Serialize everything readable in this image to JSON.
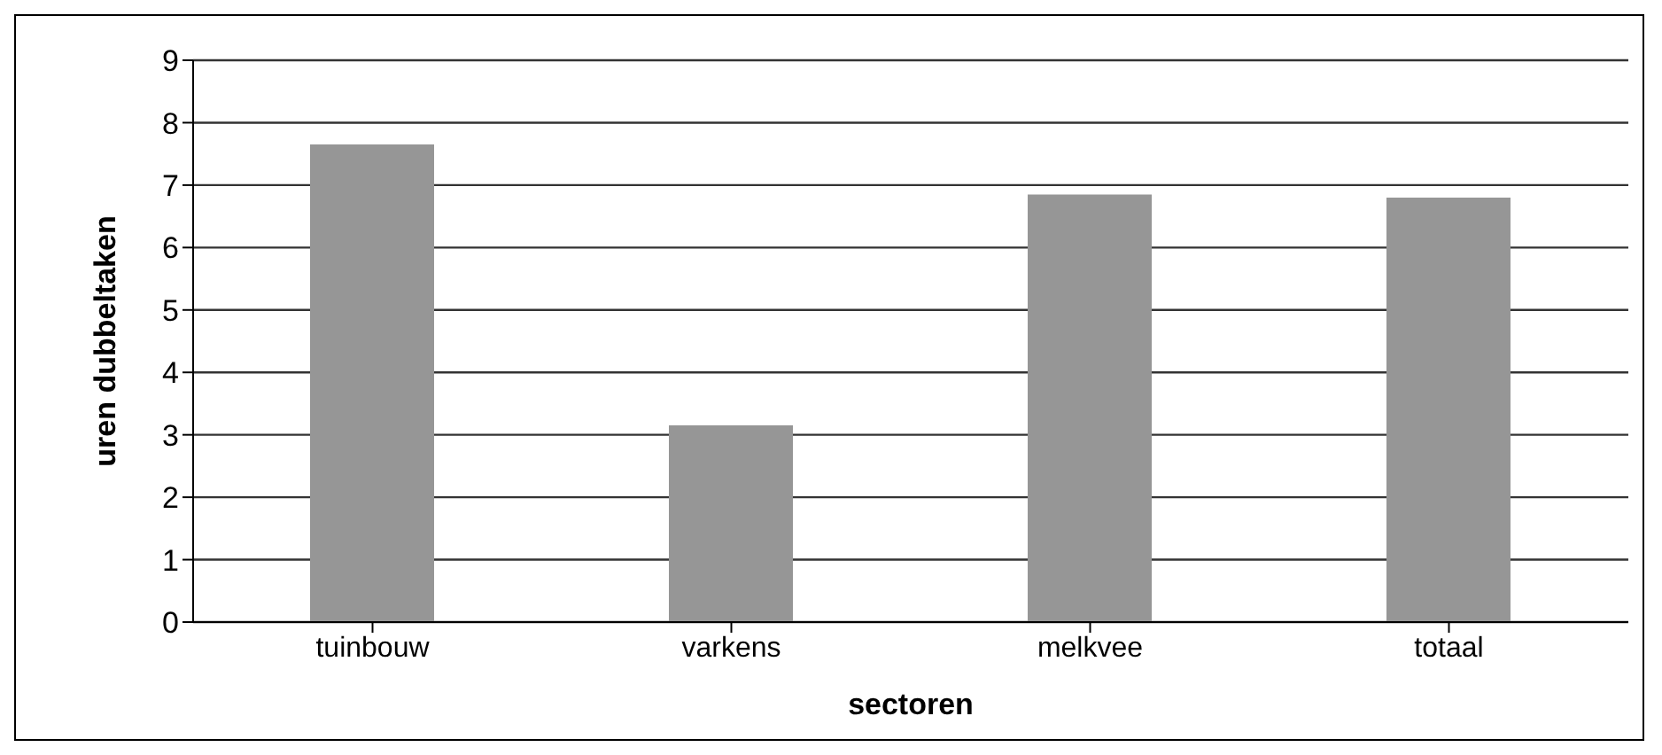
{
  "chart_data": {
    "type": "bar",
    "xlabel": "sectoren",
    "ylabel": "uren dubbeltaken",
    "categories": [
      "tuinbouw",
      "varkens",
      "melkvee",
      "totaal"
    ],
    "values": [
      7.65,
      3.15,
      6.85,
      6.8
    ],
    "color": "#969696",
    "ylim": [
      0,
      9
    ],
    "yticks": [
      0,
      1,
      2,
      3,
      4,
      5,
      6,
      7,
      8,
      9
    ],
    "grid": "y"
  }
}
